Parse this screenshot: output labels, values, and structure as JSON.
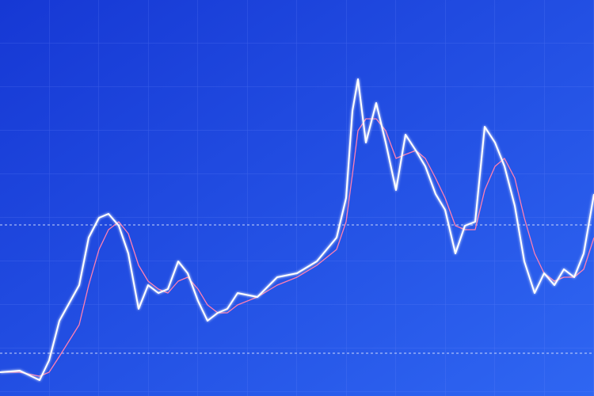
{
  "chart_data": {
    "type": "line",
    "x": [
      0,
      25,
      50,
      62,
      75,
      100,
      112,
      125,
      137,
      150,
      162,
      175,
      187,
      200,
      212,
      225,
      237,
      250,
      262,
      275,
      287,
      300,
      325,
      350,
      375,
      400,
      425,
      437,
      445,
      452,
      462,
      475,
      487,
      500,
      512,
      525,
      537,
      550,
      562,
      575,
      587,
      600,
      612,
      625,
      637,
      650,
      662,
      675,
      687,
      700,
      712,
      725,
      737,
      750
    ],
    "xlim": [
      0,
      750
    ],
    "ylim": [
      0,
      100
    ],
    "series": [
      {
        "color": "#ffffff",
        "values": [
          6,
          6.4,
          4,
          9,
          19,
          28,
          40,
          45,
          46,
          43,
          36,
          22,
          28,
          26,
          27,
          34,
          31,
          24,
          19,
          21,
          22,
          26,
          25,
          30,
          31,
          34,
          40,
          50,
          72,
          80,
          64,
          74,
          64,
          52,
          66,
          62,
          58,
          51,
          47,
          36,
          43,
          44,
          68,
          64,
          58,
          48,
          34,
          26,
          31,
          28,
          32,
          30,
          36,
          51
        ]
      },
      {
        "color": "#ff7fb0",
        "values": [
          6,
          6,
          5,
          6,
          10,
          18,
          28,
          37,
          42,
          44,
          41,
          33,
          29,
          27,
          26,
          29,
          30,
          27,
          23,
          21,
          21,
          23,
          25,
          28,
          30,
          33,
          37,
          44,
          56,
          67,
          70,
          70,
          67,
          60,
          61,
          62,
          60,
          55,
          50,
          43,
          42,
          42,
          52,
          58,
          60,
          55,
          45,
          36,
          31,
          29,
          30,
          30,
          32,
          40
        ]
      }
    ],
    "reference_lines": [
      43.2,
      10.8
    ]
  }
}
